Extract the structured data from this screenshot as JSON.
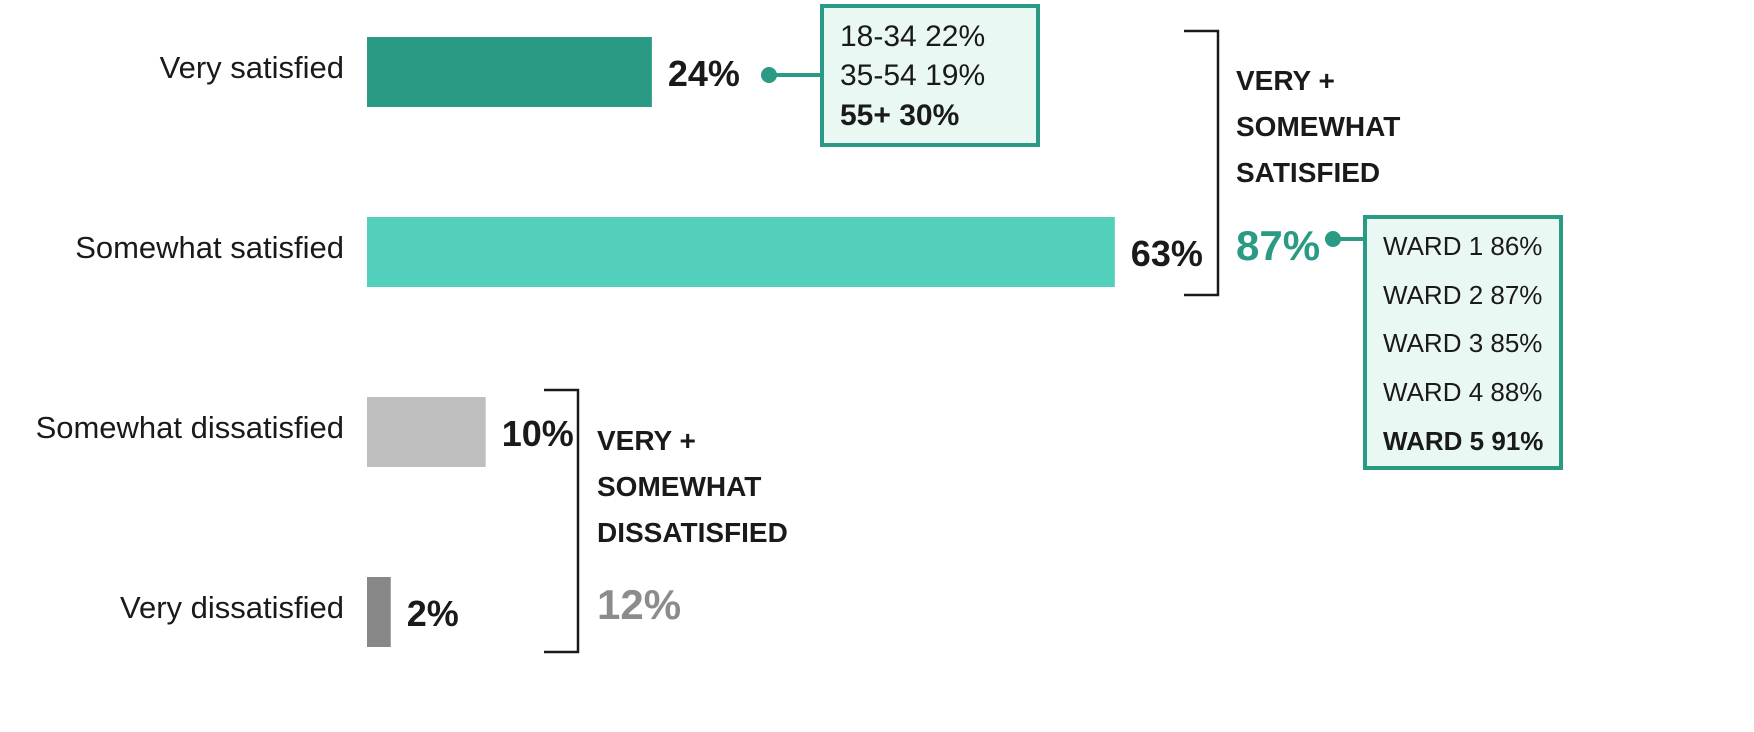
{
  "chart_data": {
    "type": "bar",
    "orientation": "horizontal",
    "categories": [
      "Very satisfied",
      "Somewhat satisfied",
      "Somewhat dissatisfied",
      "Very dissatisfied"
    ],
    "values": [
      24,
      63,
      10,
      2
    ],
    "value_labels": [
      "24%",
      "63%",
      "10%",
      "2%"
    ],
    "colors": [
      "#2a9a84",
      "#52d0bb",
      "#bfbfbf",
      "#878787"
    ],
    "callouts": [
      {
        "categories": [
          "18-34",
          "35-54",
          "55+"
        ],
        "values": [
          22,
          19,
          30
        ],
        "value_labels": [
          "22%",
          "19%",
          "30%"
        ],
        "color": "#2a9a84"
      }
    ],
    "groups": [
      {
        "label": "VERY + SOMEWHAT SATISFIED",
        "value": 87,
        "value_label": "87%",
        "color": "#2a9a84",
        "breakdown": {
          "categories": [
            "WARD 1",
            "WARD 2",
            "WARD 3",
            "WARD 4",
            "WARD 5"
          ],
          "values": [
            86,
            87,
            85,
            88,
            91
          ],
          "value_labels": [
            "86%",
            "87%",
            "85%",
            "88%",
            "91%"
          ]
        }
      },
      {
        "label": "VERY + SOMEWHAT DISSATISFIED",
        "value": 12,
        "value_label": "12%",
        "color": "#8c8c8c"
      }
    ]
  }
}
